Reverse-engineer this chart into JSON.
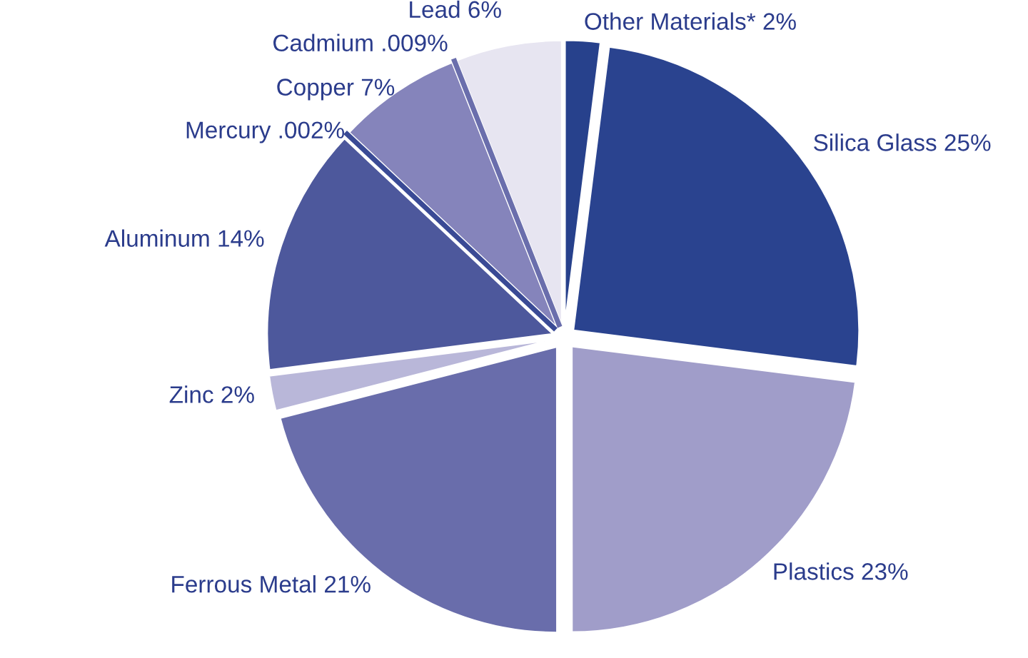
{
  "chart_data": {
    "type": "pie",
    "categories": [
      "Other Materials* 2%",
      "Silica Glass 25%",
      "Plastics 23%",
      "Ferrous Metal 21%",
      "Zinc 2%",
      "Aluminum 14%",
      "Mercury .002%",
      "Copper 7%",
      "Cadmium .009%",
      "Lead 6%"
    ],
    "values": [
      2,
      25,
      23,
      21,
      2,
      14,
      0.002,
      7,
      0.009,
      6
    ],
    "colors": [
      "#27418c",
      "#2a438f",
      "#a09dc9",
      "#696dab",
      "#b9b7d9",
      "#4d589c",
      "#3a4a95",
      "#8584bb",
      "#6a6eac",
      "#e7e5f1"
    ],
    "legend": false
  }
}
